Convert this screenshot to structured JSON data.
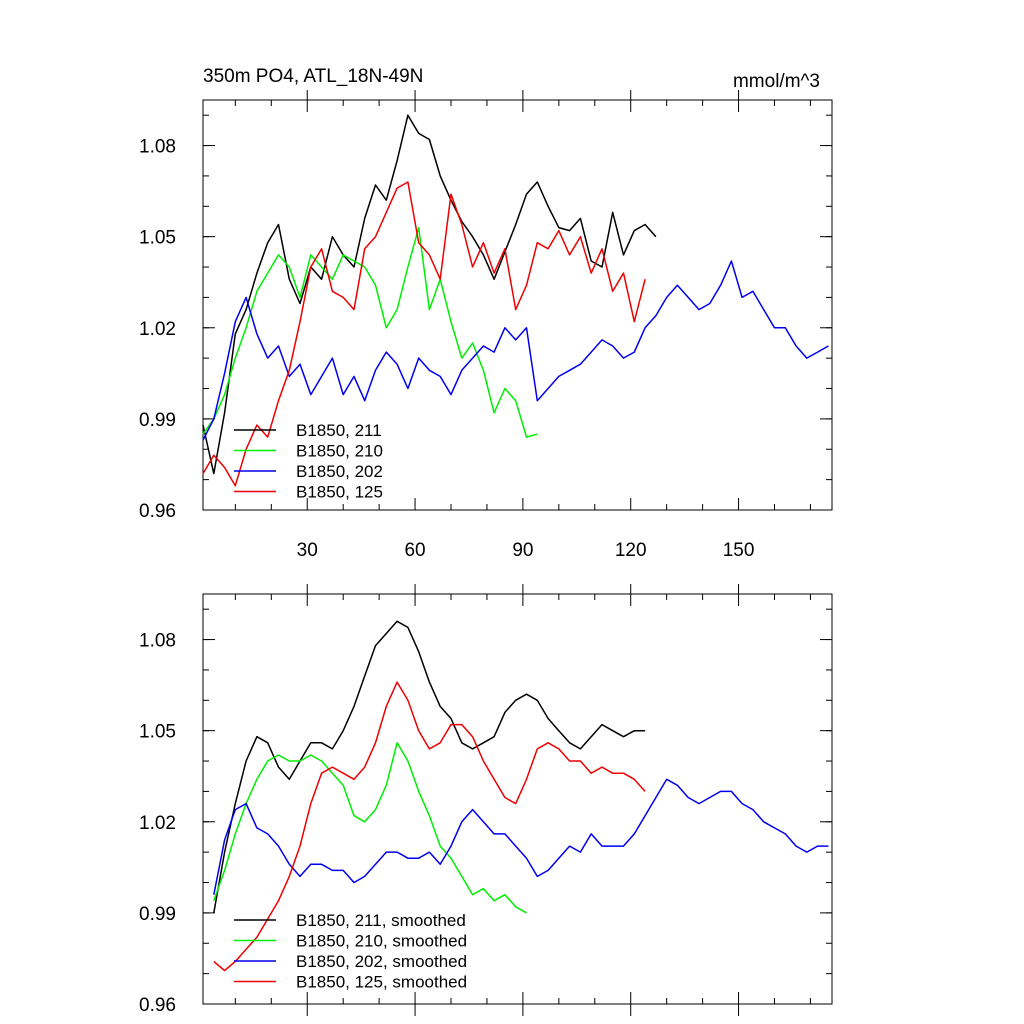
{
  "chart_data": [
    {
      "type": "line",
      "title_left": "350m PO4, ATL_18N-49N",
      "title_right": "mmol/m^3",
      "xlim": [
        1,
        176
      ],
      "ylim": [
        0.96,
        1.095
      ],
      "x_ticks": [
        30,
        60,
        90,
        120,
        150
      ],
      "y_ticks": [
        0.96,
        0.99,
        1.02,
        1.05,
        1.08
      ],
      "y_tick_labels": [
        "0.96",
        "0.99",
        "1.02",
        "1.05",
        "1.08"
      ],
      "x_tick_labels": [
        "30",
        "60",
        "90",
        "120",
        "150"
      ],
      "legend_position": "bottom-left",
      "series": [
        {
          "name": "B1850, 211",
          "color": "#000000",
          "x": [
            1,
            4,
            7,
            10,
            13,
            16,
            19,
            22,
            25,
            28,
            31,
            34,
            37,
            40,
            43,
            46,
            49,
            52,
            55,
            58,
            61,
            64,
            67,
            70,
            73,
            76,
            79,
            82,
            85,
            88,
            91,
            94,
            97,
            100,
            103,
            106,
            109,
            112,
            115,
            118,
            121,
            124,
            127
          ],
          "y": [
            0.988,
            0.972,
            0.992,
            1.018,
            1.026,
            1.038,
            1.048,
            1.054,
            1.036,
            1.028,
            1.04,
            1.036,
            1.05,
            1.044,
            1.04,
            1.056,
            1.067,
            1.062,
            1.075,
            1.09,
            1.084,
            1.082,
            1.07,
            1.062,
            1.055,
            1.05,
            1.044,
            1.036,
            1.045,
            1.054,
            1.064,
            1.068,
            1.06,
            1.053,
            1.052,
            1.056,
            1.042,
            1.04,
            1.058,
            1.044,
            1.052,
            1.054,
            1.05
          ]
        },
        {
          "name": "B1850, 210",
          "color": "#00ee00",
          "x": [
            1,
            4,
            7,
            10,
            13,
            16,
            19,
            22,
            25,
            28,
            31,
            34,
            37,
            40,
            43,
            46,
            49,
            52,
            55,
            58,
            61,
            64,
            67,
            70,
            73,
            76,
            79,
            82,
            85,
            88,
            91,
            94
          ],
          "y": [
            0.985,
            0.99,
            0.998,
            1.01,
            1.02,
            1.032,
            1.038,
            1.044,
            1.04,
            1.03,
            1.044,
            1.04,
            1.036,
            1.044,
            1.042,
            1.04,
            1.034,
            1.02,
            1.026,
            1.04,
            1.053,
            1.026,
            1.036,
            1.022,
            1.01,
            1.015,
            1.006,
            0.992,
            1.0,
            0.996,
            0.984,
            0.985
          ]
        },
        {
          "name": "B1850, 202",
          "color": "#0000ee",
          "x": [
            1,
            4,
            7,
            10,
            13,
            16,
            19,
            22,
            25,
            28,
            31,
            34,
            37,
            40,
            43,
            46,
            49,
            52,
            55,
            58,
            61,
            64,
            67,
            70,
            73,
            76,
            79,
            82,
            85,
            88,
            91,
            94,
            97,
            100,
            103,
            106,
            109,
            112,
            115,
            118,
            121,
            124,
            127,
            130,
            133,
            136,
            139,
            142,
            145,
            148,
            151,
            154,
            157,
            160,
            163,
            166,
            169,
            172,
            175
          ],
          "y": [
            0.983,
            0.99,
            1.005,
            1.022,
            1.03,
            1.018,
            1.01,
            1.014,
            1.004,
            1.008,
            0.998,
            1.004,
            1.01,
            0.998,
            1.004,
            0.996,
            1.006,
            1.012,
            1.008,
            1.0,
            1.01,
            1.006,
            1.004,
            0.998,
            1.006,
            1.01,
            1.014,
            1.012,
            1.02,
            1.016,
            1.02,
            0.996,
            1.0,
            1.004,
            1.006,
            1.008,
            1.012,
            1.016,
            1.014,
            1.01,
            1.012,
            1.02,
            1.024,
            1.03,
            1.034,
            1.03,
            1.026,
            1.028,
            1.034,
            1.042,
            1.03,
            1.032,
            1.026,
            1.02,
            1.02,
            1.014,
            1.01,
            1.012,
            1.014
          ]
        },
        {
          "name": "B1850, 125",
          "color": "#ee0000",
          "x": [
            1,
            4,
            7,
            10,
            13,
            16,
            19,
            22,
            25,
            28,
            31,
            34,
            37,
            40,
            43,
            46,
            49,
            52,
            55,
            58,
            61,
            64,
            67,
            70,
            73,
            76,
            79,
            82,
            85,
            88,
            91,
            94,
            97,
            100,
            103,
            106,
            109,
            112,
            115,
            118,
            121,
            124
          ],
          "y": [
            0.972,
            0.978,
            0.974,
            0.968,
            0.98,
            0.988,
            0.984,
            0.996,
            1.006,
            1.022,
            1.04,
            1.046,
            1.032,
            1.03,
            1.026,
            1.046,
            1.05,
            1.058,
            1.066,
            1.068,
            1.048,
            1.044,
            1.036,
            1.064,
            1.054,
            1.04,
            1.048,
            1.038,
            1.046,
            1.026,
            1.034,
            1.048,
            1.046,
            1.052,
            1.044,
            1.05,
            1.038,
            1.046,
            1.032,
            1.038,
            1.022,
            1.036
          ]
        }
      ],
      "legend": [
        "B1850, 211",
        "B1850, 210",
        "B1850, 202",
        "B1850, 125"
      ]
    },
    {
      "type": "line",
      "xlim": [
        1,
        176
      ],
      "ylim": [
        0.96,
        1.095
      ],
      "x_ticks": [
        30,
        60,
        90,
        120,
        150
      ],
      "y_ticks": [
        0.96,
        0.99,
        1.02,
        1.05,
        1.08
      ],
      "y_tick_labels": [
        "0.96",
        "0.99",
        "1.02",
        "1.05",
        "1.08"
      ],
      "legend_position": "bottom-left",
      "series": [
        {
          "name": "B1850, 211, smoothed",
          "color": "#000000",
          "x": [
            4,
            7,
            10,
            13,
            16,
            19,
            22,
            25,
            28,
            31,
            34,
            37,
            40,
            43,
            46,
            49,
            52,
            55,
            58,
            61,
            64,
            67,
            70,
            73,
            76,
            79,
            82,
            85,
            88,
            91,
            94,
            97,
            100,
            103,
            106,
            109,
            112,
            115,
            118,
            121,
            124
          ],
          "y": [
            0.99,
            1.01,
            1.026,
            1.04,
            1.048,
            1.046,
            1.038,
            1.034,
            1.04,
            1.046,
            1.046,
            1.044,
            1.05,
            1.058,
            1.068,
            1.078,
            1.082,
            1.086,
            1.084,
            1.076,
            1.066,
            1.058,
            1.054,
            1.046,
            1.044,
            1.046,
            1.048,
            1.056,
            1.06,
            1.062,
            1.06,
            1.054,
            1.05,
            1.046,
            1.044,
            1.048,
            1.052,
            1.05,
            1.048,
            1.05,
            1.05
          ]
        },
        {
          "name": "B1850, 210, smoothed",
          "color": "#00ee00",
          "x": [
            4,
            7,
            10,
            13,
            16,
            19,
            22,
            25,
            28,
            31,
            34,
            37,
            40,
            43,
            46,
            49,
            52,
            55,
            58,
            61,
            64,
            67,
            70,
            73,
            76,
            79,
            82,
            85,
            88,
            91
          ],
          "y": [
            0.994,
            1.004,
            1.016,
            1.026,
            1.034,
            1.04,
            1.042,
            1.04,
            1.04,
            1.042,
            1.04,
            1.036,
            1.032,
            1.022,
            1.02,
            1.024,
            1.032,
            1.046,
            1.04,
            1.03,
            1.022,
            1.012,
            1.008,
            1.002,
            0.996,
            0.998,
            0.994,
            0.996,
            0.992,
            0.99
          ]
        },
        {
          "name": "B1850, 202, smoothed",
          "color": "#0000ee",
          "x": [
            4,
            7,
            10,
            13,
            16,
            19,
            22,
            25,
            28,
            31,
            34,
            37,
            40,
            43,
            46,
            49,
            52,
            55,
            58,
            61,
            64,
            67,
            70,
            73,
            76,
            79,
            82,
            85,
            88,
            91,
            94,
            97,
            100,
            103,
            106,
            109,
            112,
            115,
            118,
            121,
            124,
            127,
            130,
            133,
            136,
            139,
            142,
            145,
            148,
            151,
            154,
            157,
            160,
            163,
            166,
            169,
            172,
            175
          ],
          "y": [
            0.996,
            1.014,
            1.024,
            1.026,
            1.018,
            1.016,
            1.012,
            1.006,
            1.002,
            1.006,
            1.006,
            1.004,
            1.004,
            1.0,
            1.002,
            1.006,
            1.01,
            1.01,
            1.008,
            1.008,
            1.01,
            1.006,
            1.012,
            1.02,
            1.024,
            1.02,
            1.016,
            1.016,
            1.012,
            1.008,
            1.002,
            1.004,
            1.008,
            1.012,
            1.01,
            1.016,
            1.012,
            1.012,
            1.012,
            1.016,
            1.022,
            1.028,
            1.034,
            1.032,
            1.028,
            1.026,
            1.028,
            1.03,
            1.03,
            1.026,
            1.024,
            1.02,
            1.018,
            1.016,
            1.012,
            1.01,
            1.012,
            1.012
          ]
        },
        {
          "name": "B1850, 125, smoothed",
          "color": "#ee0000",
          "x": [
            4,
            7,
            10,
            13,
            16,
            19,
            22,
            25,
            28,
            31,
            34,
            37,
            40,
            43,
            46,
            49,
            52,
            55,
            58,
            61,
            64,
            67,
            70,
            73,
            76,
            79,
            82,
            85,
            88,
            91,
            94,
            97,
            100,
            103,
            106,
            109,
            112,
            115,
            118,
            121,
            124
          ],
          "y": [
            0.974,
            0.971,
            0.974,
            0.978,
            0.982,
            0.988,
            0.994,
            1.002,
            1.012,
            1.026,
            1.036,
            1.038,
            1.036,
            1.034,
            1.038,
            1.046,
            1.058,
            1.066,
            1.06,
            1.05,
            1.044,
            1.046,
            1.052,
            1.052,
            1.048,
            1.04,
            1.034,
            1.028,
            1.026,
            1.034,
            1.044,
            1.046,
            1.044,
            1.04,
            1.04,
            1.036,
            1.038,
            1.036,
            1.036,
            1.034,
            1.03
          ]
        }
      ],
      "legend": [
        "B1850, 211, smoothed",
        "B1850, 210, smoothed",
        "B1850, 202, smoothed",
        "B1850, 125, smoothed"
      ]
    }
  ]
}
